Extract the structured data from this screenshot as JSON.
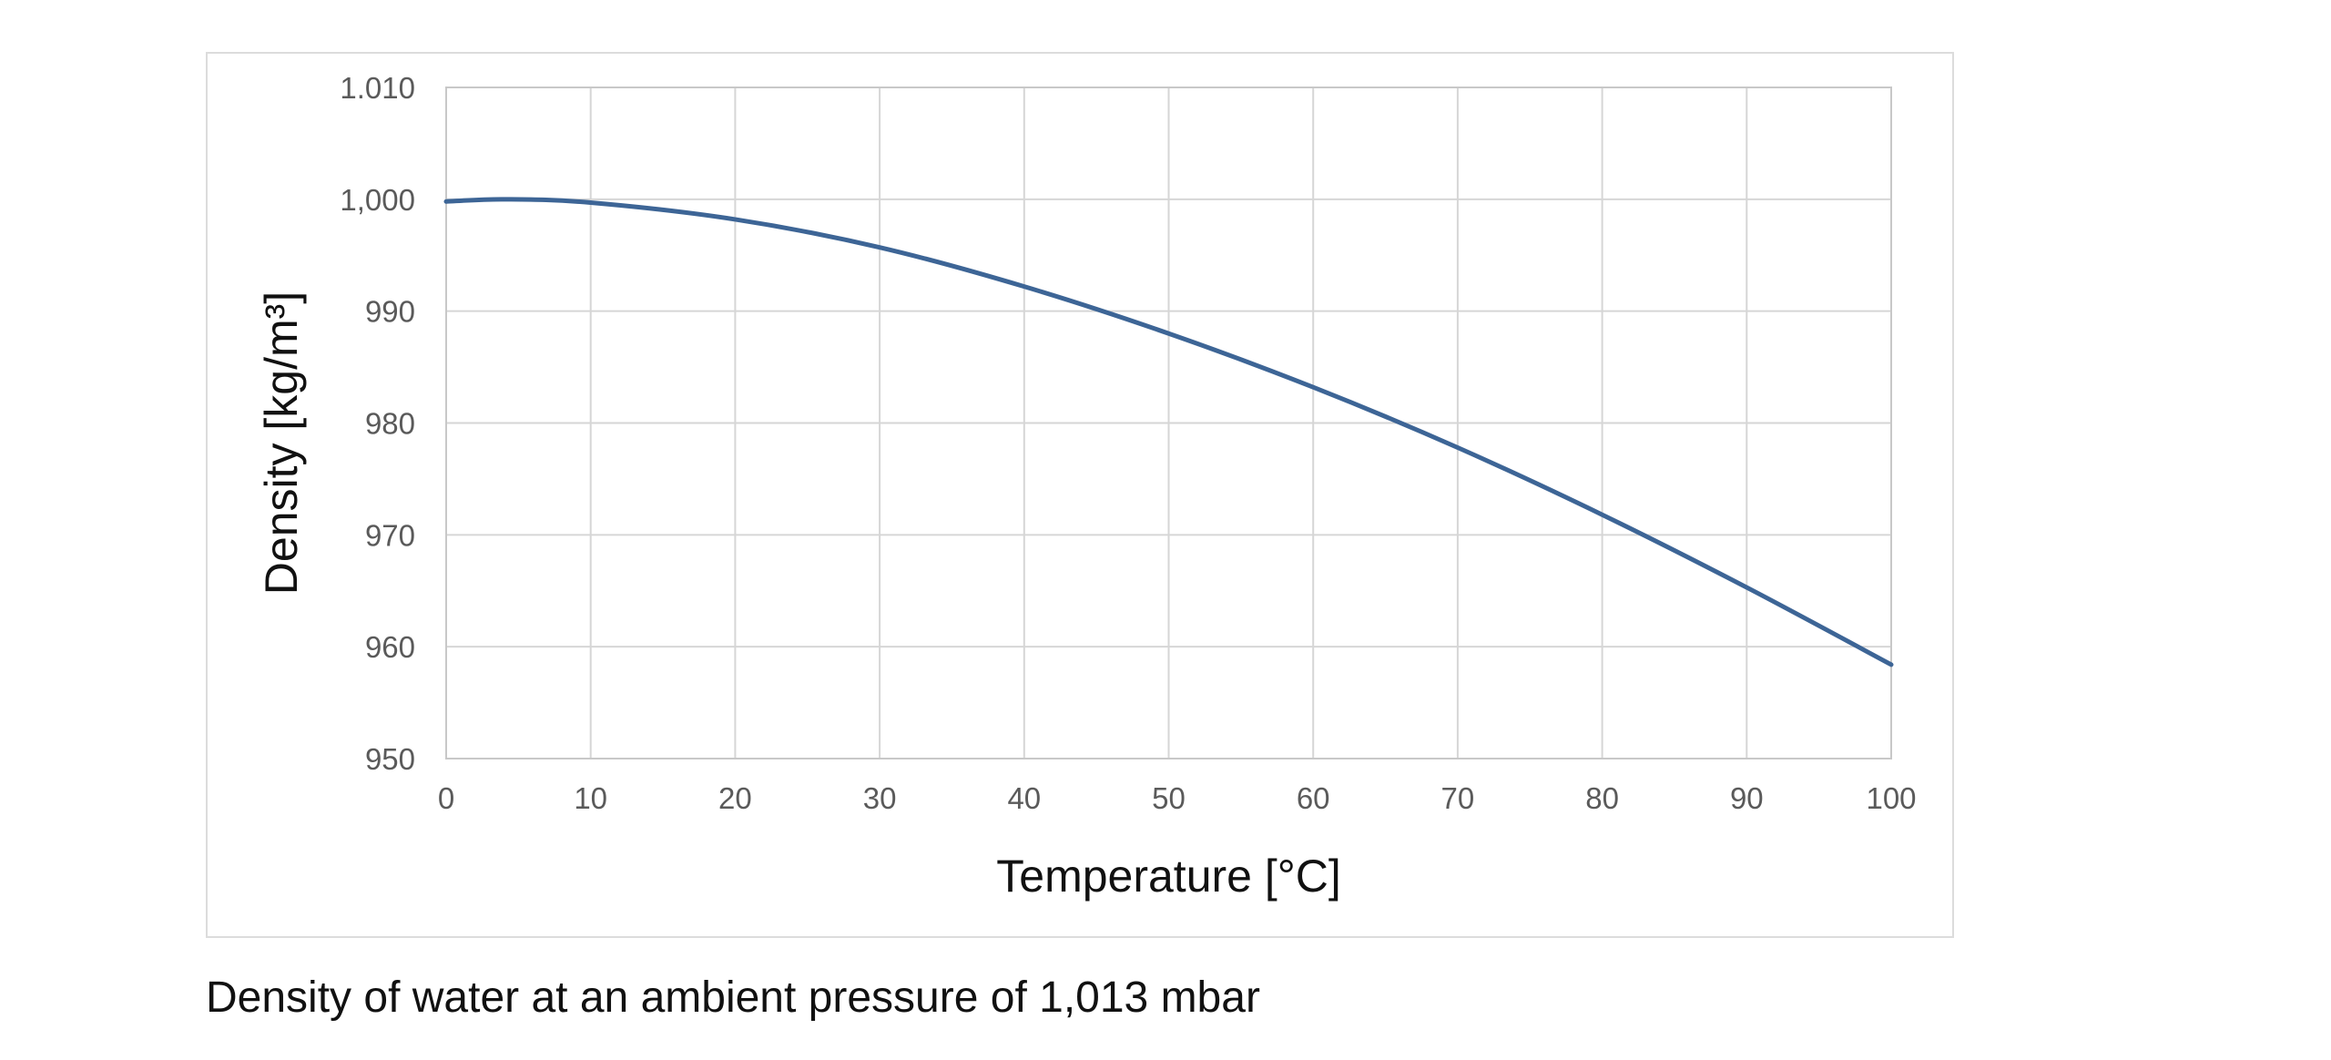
{
  "caption": "Density of water at an ambient pressure of 1,013 mbar",
  "chart_data": {
    "type": "line",
    "title": "",
    "xlabel": "Temperature [°C]",
    "ylabel": "Density [kg/m³]",
    "xlim": [
      0,
      100
    ],
    "ylim": [
      950,
      1010
    ],
    "x_ticks": [
      0,
      10,
      20,
      30,
      40,
      50,
      60,
      70,
      80,
      90,
      100
    ],
    "x_tick_labels": [
      "0",
      "10",
      "20",
      "30",
      "40",
      "50",
      "60",
      "70",
      "80",
      "90",
      "100"
    ],
    "y_ticks": [
      950,
      960,
      970,
      980,
      990,
      1000,
      1010
    ],
    "y_tick_labels": [
      "950",
      "960",
      "970",
      "980",
      "990",
      "1,000",
      "1.010"
    ],
    "grid": true,
    "legend": "none",
    "series": [
      {
        "color": "#3d6596",
        "x": [
          0,
          4,
          10,
          20,
          30,
          40,
          50,
          60,
          70,
          80,
          90,
          100
        ],
        "values": [
          999.8,
          1000.0,
          999.7,
          998.2,
          995.7,
          992.2,
          988.0,
          983.2,
          977.8,
          971.8,
          965.3,
          958.4
        ]
      }
    ]
  }
}
